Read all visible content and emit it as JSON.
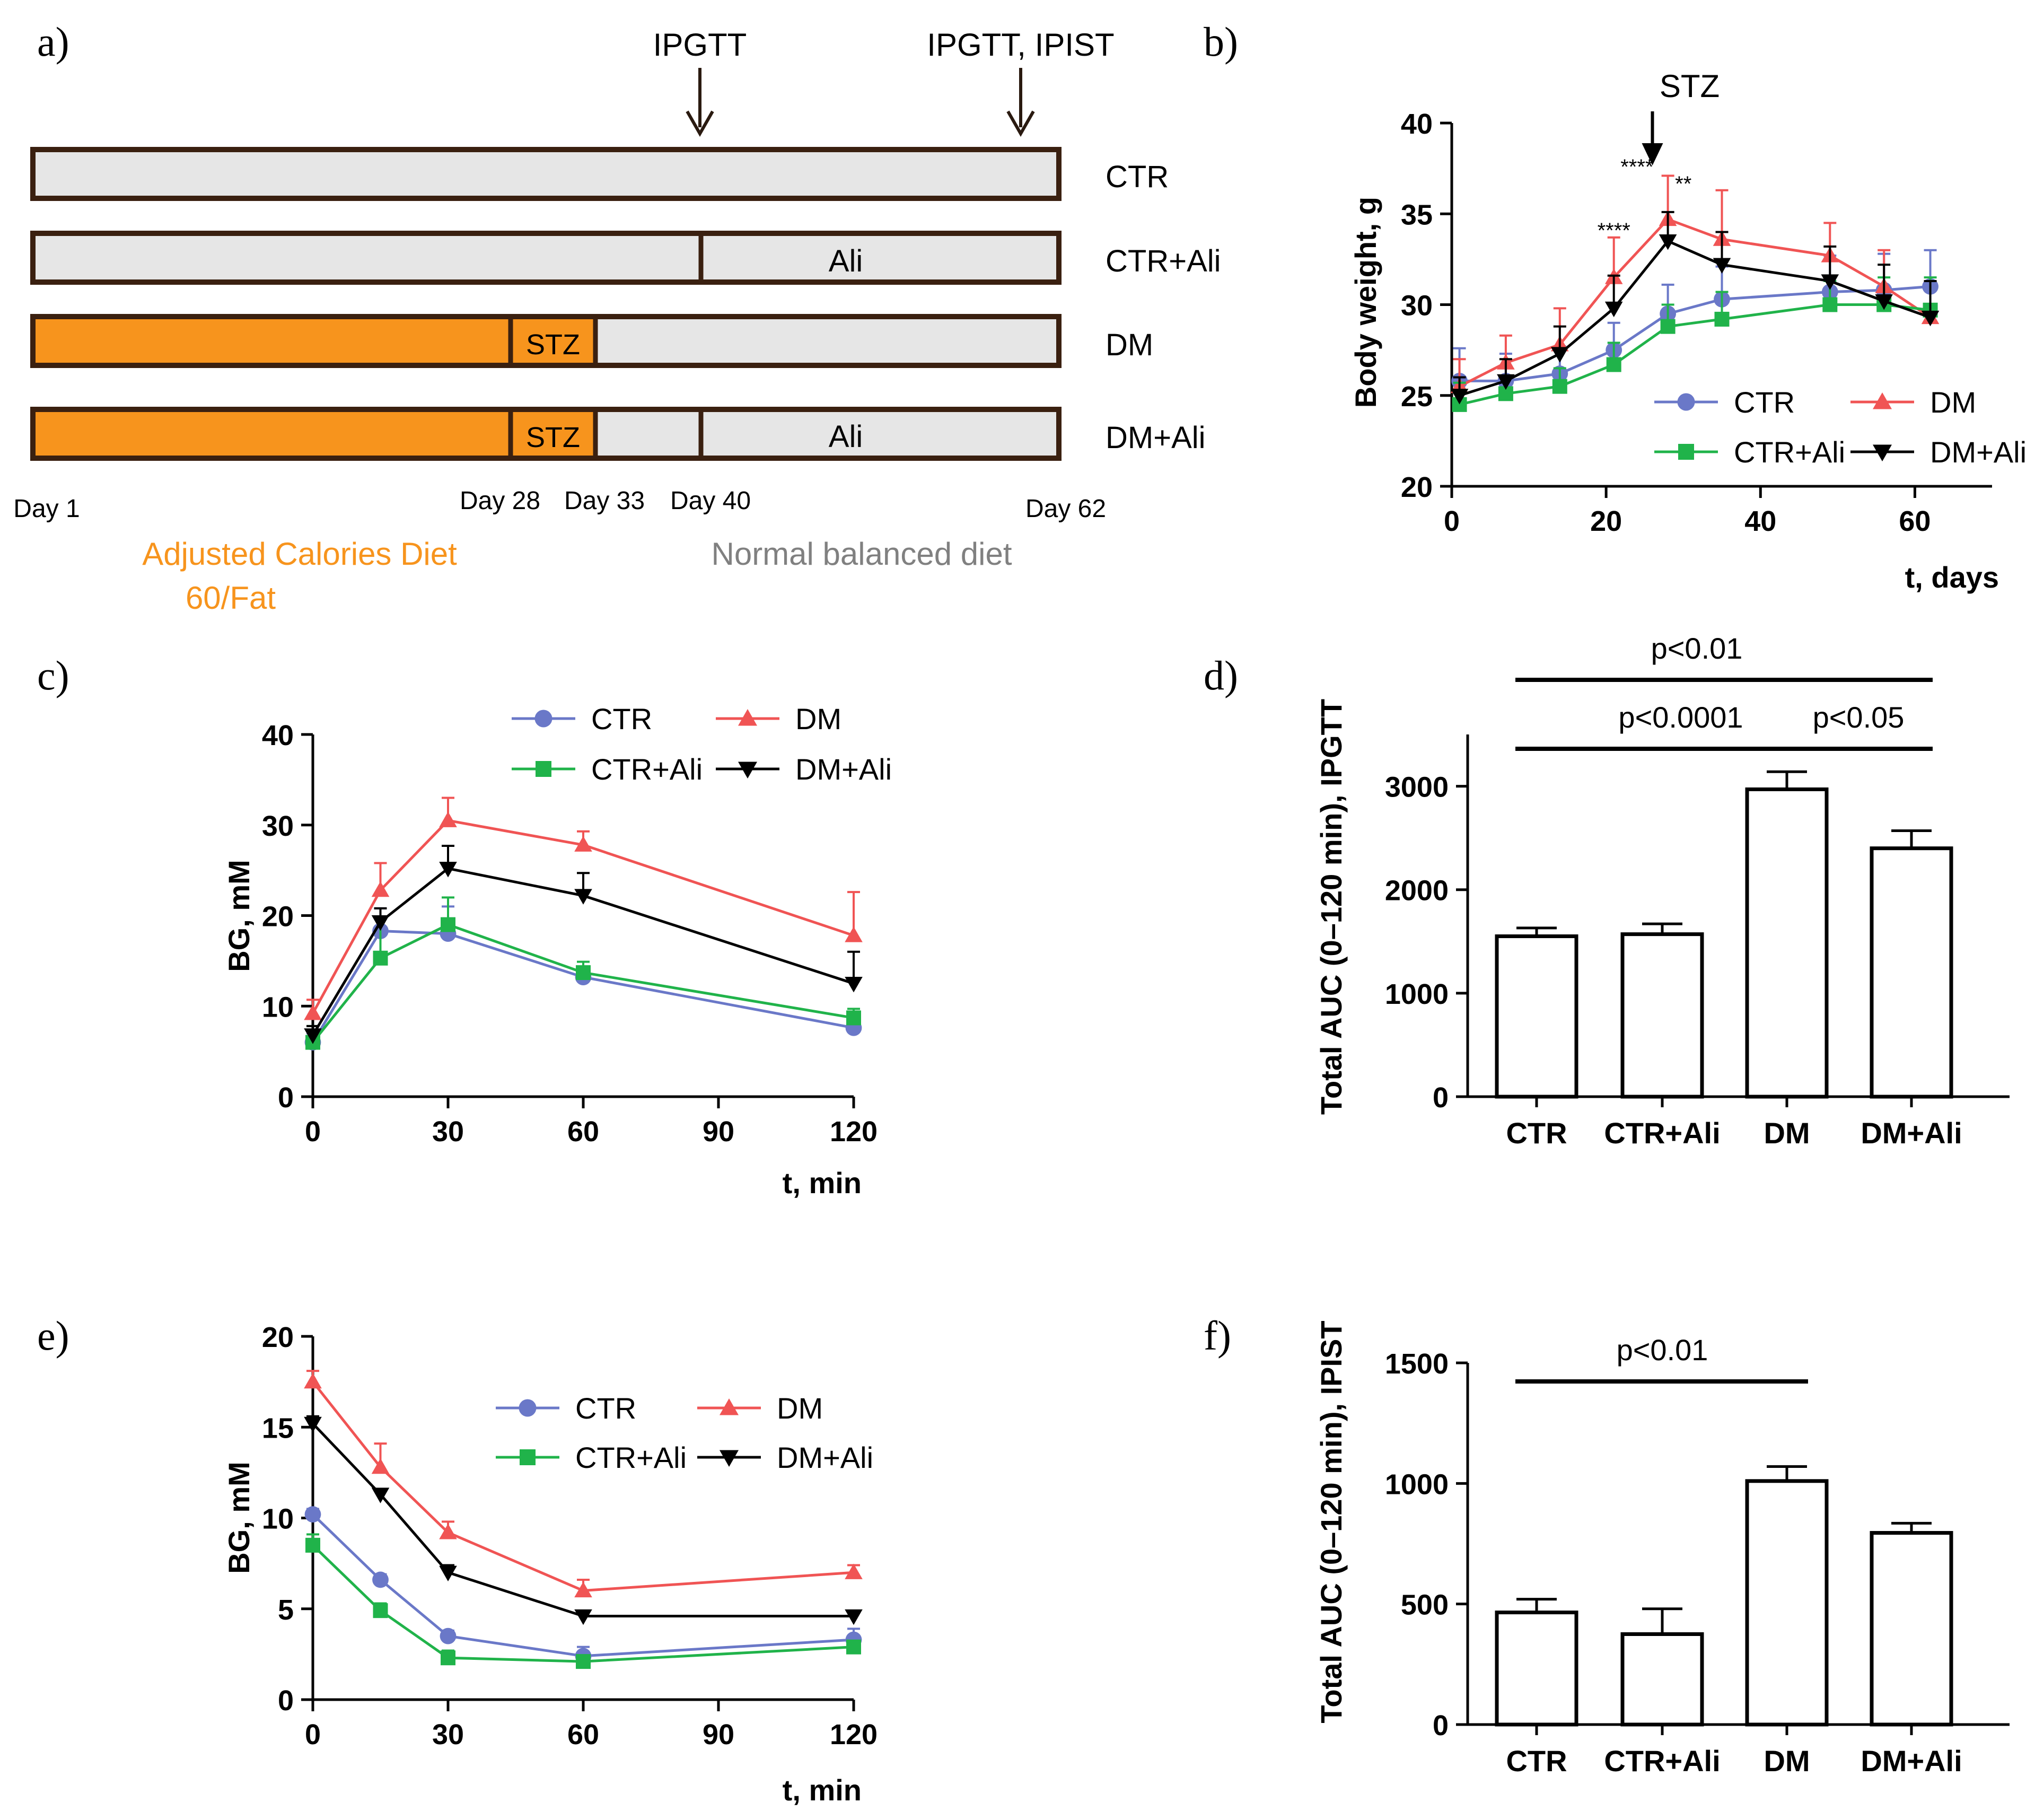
{
  "colors": {
    "ctr": "#6a78c8",
    "ctr_ali": "#20b34a",
    "dm": "#f05454",
    "dm_ali": "#000000",
    "orange": "#f7941d",
    "grey_bar": "#e6e6e6",
    "bar_border": "#3a2010",
    "grey_text": "#808080"
  },
  "panels": {
    "a": {
      "label": "a)",
      "markers": [
        "IPGTT",
        "IPGTT, IPIST"
      ],
      "rows": [
        {
          "name": "CTR",
          "inner": []
        },
        {
          "name": "CTR+Ali",
          "inner": [
            "Ali"
          ]
        },
        {
          "name": "DM",
          "inner": [
            "STZ"
          ]
        },
        {
          "name": "DM+Ali",
          "inner": [
            "STZ",
            "Ali"
          ]
        }
      ],
      "days": [
        "Day 1",
        "Day 28",
        "Day 33",
        "Day 40",
        "Day 62"
      ],
      "diet_left": [
        "Adjusted Calories Diet",
        "60/Fat"
      ],
      "diet_right": "Normal balanced diet"
    },
    "b": {
      "label": "b)",
      "stz_label": "STZ",
      "stars": [
        "****",
        "****",
        "**"
      ]
    },
    "c": {
      "label": "c)"
    },
    "d": {
      "label": "d)"
    },
    "e": {
      "label": "e)"
    },
    "f": {
      "label": "f)"
    }
  },
  "chart_data": [
    {
      "id": "b",
      "type": "line",
      "title": "",
      "xlabel": "t, days",
      "ylabel": "Body weight, g",
      "xlim": [
        0,
        70
      ],
      "ylim": [
        20,
        40
      ],
      "xticks": [
        0,
        20,
        40,
        60
      ],
      "yticks": [
        20,
        25,
        30,
        35,
        40
      ],
      "x": [
        1,
        7,
        14,
        21,
        28,
        35,
        49,
        56,
        62
      ],
      "legend": [
        "CTR",
        "DM",
        "CTR+Ali",
        "DM+Ali"
      ],
      "series": [
        {
          "name": "CTR",
          "key": "ctr",
          "marker": "circle",
          "values": [
            25.8,
            25.8,
            26.2,
            27.5,
            29.5,
            30.3,
            30.7,
            30.8,
            31.0
          ],
          "errors": [
            1.8,
            1.5,
            1.5,
            1.5,
            1.6,
            1.8,
            2.0,
            2.0,
            2.0
          ]
        },
        {
          "name": "DM",
          "key": "dm",
          "marker": "triangle",
          "values": [
            25.5,
            26.8,
            27.8,
            31.5,
            34.7,
            33.6,
            32.7,
            31.0,
            29.3
          ],
          "errors": [
            1.5,
            1.5,
            2.0,
            2.2,
            2.4,
            2.7,
            1.8,
            2.0,
            2.0
          ]
        },
        {
          "name": "CTR+Ali",
          "key": "ctr_ali",
          "marker": "square",
          "values": [
            24.5,
            25.1,
            25.5,
            26.7,
            28.8,
            29.2,
            30.0,
            30.0,
            29.7
          ],
          "errors": [
            1.2,
            1.0,
            1.0,
            1.2,
            1.2,
            1.5,
            1.3,
            1.5,
            1.8
          ]
        },
        {
          "name": "DM+Ali",
          "key": "dm_ali",
          "marker": "triangle-down",
          "values": [
            25.0,
            25.8,
            27.3,
            29.8,
            33.5,
            32.2,
            31.3,
            30.2,
            29.3
          ],
          "errors": [
            1.0,
            1.2,
            1.5,
            1.8,
            1.6,
            1.8,
            1.9,
            2.0,
            2.0
          ]
        }
      ]
    },
    {
      "id": "c",
      "type": "line",
      "title": "",
      "xlabel": "t, min",
      "ylabel": "BG, mM",
      "xlim": [
        0,
        120
      ],
      "ylim": [
        0,
        40
      ],
      "xticks": [
        0,
        30,
        60,
        90,
        120
      ],
      "yticks": [
        0,
        10,
        20,
        30,
        40
      ],
      "x": [
        0,
        15,
        30,
        60,
        120
      ],
      "legend": [
        "CTR",
        "DM",
        "CTR+Ali",
        "DM+Ali"
      ],
      "series": [
        {
          "name": "CTR",
          "key": "ctr",
          "marker": "circle",
          "values": [
            6.0,
            18.3,
            18.0,
            13.2,
            7.6
          ],
          "errors": [
            1.0,
            2.5,
            3.0,
            1.0,
            0.6
          ]
        },
        {
          "name": "DM",
          "key": "dm",
          "marker": "triangle",
          "values": [
            9.2,
            22.8,
            30.5,
            27.8,
            17.8
          ],
          "errors": [
            1.5,
            3.0,
            2.5,
            1.5,
            4.8
          ]
        },
        {
          "name": "CTR+Ali",
          "key": "ctr_ali",
          "marker": "square",
          "values": [
            6.0,
            15.3,
            19.0,
            13.7,
            8.7
          ],
          "errors": [
            1.8,
            4.5,
            3.0,
            1.2,
            1.0
          ]
        },
        {
          "name": "DM+Ali",
          "key": "dm_ali",
          "marker": "triangle-down",
          "values": [
            6.8,
            19.3,
            25.2,
            22.2,
            12.5
          ],
          "errors": [
            1.0,
            1.5,
            2.5,
            2.5,
            3.5
          ]
        }
      ]
    },
    {
      "id": "d",
      "type": "bar",
      "title": "",
      "xlabel": "",
      "ylabel": "Total AUC (0–120 min), IPGTT",
      "ylim": [
        0,
        3500
      ],
      "yticks": [
        0,
        1000,
        2000,
        3000
      ],
      "categories": [
        "CTR",
        "CTR+Ali",
        "DM",
        "DM+Ali"
      ],
      "values": [
        1550,
        1570,
        2970,
        2400
      ],
      "errors": [
        80,
        100,
        170,
        170
      ],
      "annotations": [
        {
          "text": "p<0.01",
          "from": "CTR",
          "to": "DM+Ali"
        },
        {
          "text": "p<0.0001",
          "from": "CTR",
          "to": "DM"
        },
        {
          "text": "p<0.05",
          "from": "DM",
          "to": "DM+Ali"
        }
      ]
    },
    {
      "id": "e",
      "type": "line",
      "title": "",
      "xlabel": "t, min",
      "ylabel": "BG, mM",
      "xlim": [
        0,
        120
      ],
      "ylim": [
        0,
        20
      ],
      "xticks": [
        0,
        30,
        60,
        90,
        120
      ],
      "yticks": [
        0,
        5,
        10,
        15,
        20
      ],
      "x": [
        0,
        15,
        30,
        60,
        120
      ],
      "legend": [
        "CTR",
        "DM",
        "CTR+Ali",
        "DM+Ali"
      ],
      "series": [
        {
          "name": "CTR",
          "key": "ctr",
          "marker": "circle",
          "values": [
            10.2,
            6.6,
            3.5,
            2.4,
            3.3
          ],
          "errors": [
            0.3,
            0.3,
            0.3,
            0.5,
            0.6
          ]
        },
        {
          "name": "DM",
          "key": "dm",
          "marker": "triangle",
          "values": [
            17.5,
            12.8,
            9.2,
            6.0,
            7.0
          ],
          "errors": [
            0.6,
            1.3,
            0.6,
            0.6,
            0.4
          ]
        },
        {
          "name": "CTR+Ali",
          "key": "ctr_ali",
          "marker": "square",
          "values": [
            8.5,
            4.9,
            2.3,
            2.1,
            2.9
          ],
          "errors": [
            0.6,
            0.4,
            0.4,
            0.3,
            0.3
          ]
        },
        {
          "name": "DM+Ali",
          "key": "dm_ali",
          "marker": "triangle-down",
          "values": [
            15.2,
            11.3,
            7.0,
            4.6,
            4.6
          ],
          "errors": [
            0.4,
            0.3,
            0.4,
            0.3,
            0.3
          ]
        }
      ]
    },
    {
      "id": "f",
      "type": "bar",
      "title": "",
      "xlabel": "",
      "ylabel": "Total AUC (0–120 min), IPIST",
      "ylim": [
        0,
        1500
      ],
      "yticks": [
        0,
        500,
        1000,
        1500
      ],
      "categories": [
        "CTR",
        "CTR+Ali",
        "DM",
        "DM+Ali"
      ],
      "values": [
        465,
        375,
        1010,
        795
      ],
      "errors": [
        55,
        105,
        60,
        40
      ],
      "annotations": [
        {
          "text": "p<0.01",
          "from": "CTR",
          "to": "DM"
        }
      ]
    }
  ]
}
